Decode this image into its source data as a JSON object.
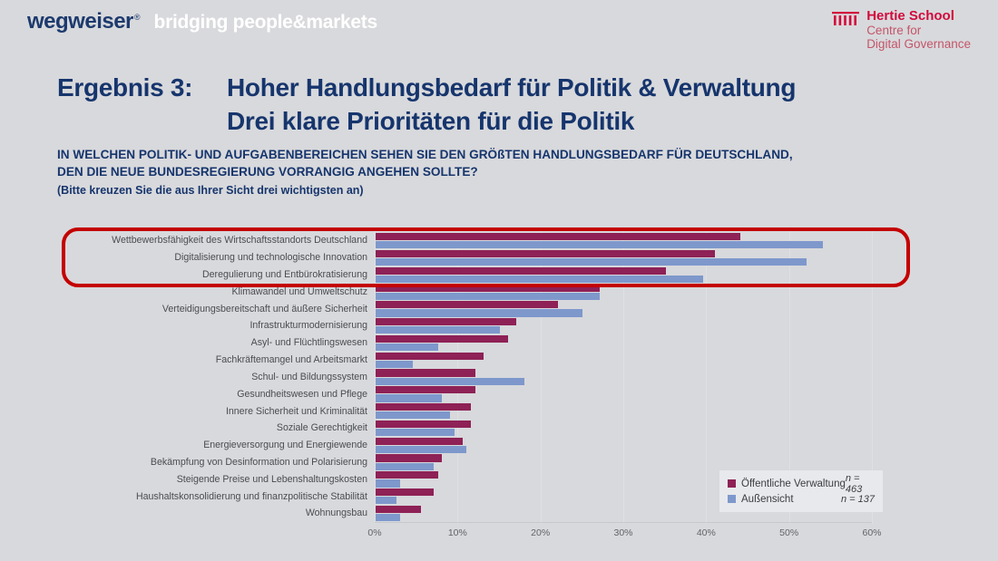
{
  "header": {
    "logo_left": {
      "brand": "wegweiser",
      "reg": "®",
      "tagline": "bridging people&markets"
    },
    "logo_right": {
      "name": "Hertie School",
      "line2": "Centre for",
      "line3": "Digital Governance"
    }
  },
  "title": {
    "prefix": "Ergebnis 3:",
    "line1": "Hoher Handlungsbedarf für Politik & Verwaltung",
    "line2": "Drei klare Prioritäten für die Politik"
  },
  "question": {
    "line1": "IN WELCHEN POLITIK- UND AUFGABENBEREICHEN SEHEN SIE DEN GRÖßTEN HANDLUNGSBEDARF FÜR DEUTSCHLAND,",
    "line2": "DEN DIE NEUE BUNDESREGIERUNG VORRANGIG ANGEHEN SOLLTE?",
    "note": "(Bitte kreuzen Sie die aus Ihrer Sicht drei wichtigsten an)"
  },
  "chart_data": {
    "type": "bar",
    "orientation": "horizontal",
    "categories": [
      "Wettbewerbsfähigkeit des Wirtschaftsstandorts Deutschland",
      "Digitalisierung und technologische Innovation",
      "Deregulierung und Entbürokratisierung",
      "Klimawandel und Umweltschutz",
      "Verteidigungsbereitschaft und äußere Sicherheit",
      "Infrastrukturmodernisierung",
      "Asyl- und Flüchtlingswesen",
      "Fachkräftemangel und Arbeitsmarkt",
      "Schul- und Bildungssystem",
      "Gesundheitswesen und Pflege",
      "Innere Sicherheit und Kriminalität",
      "Soziale Gerechtigkeit",
      "Energieversorgung und Energiewende",
      "Bekämpfung von Desinformation und Polarisierung",
      "Steigende Preise und Lebenshaltungskosten",
      "Haushaltskonsolidierung und finanzpolitische Stabilität",
      "Wohnungsbau"
    ],
    "series": [
      {
        "name": "Öffentliche Verwaltung",
        "n": "n = 463",
        "color": "#8e2156",
        "values": [
          44,
          41,
          35,
          27,
          22,
          17,
          16,
          13,
          12,
          12,
          11.5,
          11.5,
          10.5,
          8,
          7.5,
          7,
          5.5
        ]
      },
      {
        "name": "Außensicht",
        "n": "n = 137",
        "color": "#7e98cc",
        "values": [
          54,
          52,
          39.5,
          27,
          25,
          15,
          7.5,
          4.5,
          18,
          8,
          9,
          9.5,
          11,
          7,
          3,
          2.5,
          3
        ]
      }
    ],
    "x_ticks": [
      "0%",
      "10%",
      "20%",
      "30%",
      "40%",
      "50%",
      "60%"
    ],
    "xlim": [
      0,
      60
    ],
    "grid": "faint vertical lines at ticks",
    "legend_position": "bottom-right",
    "highlight": "top 3 categories framed in red"
  },
  "colors": {
    "background": "#d8d9dc",
    "navy": "#16356d",
    "bar_red": "#8e2156",
    "bar_blue": "#7e98cc",
    "highlight_red": "#c40000",
    "hertie_red": "#d20a3c"
  }
}
